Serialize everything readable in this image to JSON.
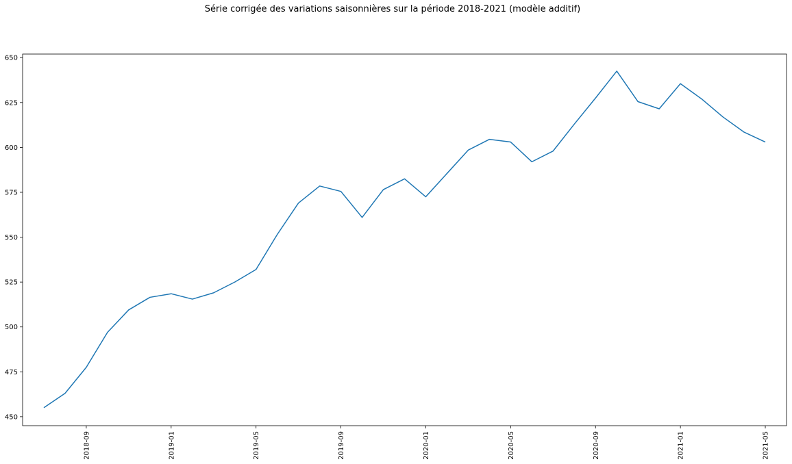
{
  "chart_data": {
    "type": "line",
    "title": "Série corrigée des variations saisonnières sur la période 2018-2021 (modèle additif)",
    "xlabel": "",
    "ylabel": "",
    "ylim": [
      445,
      652
    ],
    "xlim": [
      "2018-06-01",
      "2021-06-01"
    ],
    "grid": false,
    "legend": "none",
    "x_ticks": [
      "2018-09",
      "2019-01",
      "2019-05",
      "2019-09",
      "2020-01",
      "2020-05",
      "2020-09",
      "2021-01",
      "2021-05"
    ],
    "y_ticks": [
      450,
      475,
      500,
      525,
      550,
      575,
      600,
      625,
      650
    ],
    "series": [
      {
        "color": "#1f77b4",
        "x": [
          "2018-07",
          "2018-08",
          "2018-09",
          "2018-10",
          "2018-11",
          "2018-12",
          "2019-01",
          "2019-02",
          "2019-03",
          "2019-04",
          "2019-05",
          "2019-06",
          "2019-07",
          "2019-08",
          "2019-09",
          "2019-10",
          "2019-11",
          "2019-12",
          "2020-01",
          "2020-02",
          "2020-03",
          "2020-04",
          "2020-05",
          "2020-06",
          "2020-07",
          "2020-08",
          "2020-09",
          "2020-10",
          "2020-11",
          "2020-12",
          "2021-01",
          "2021-02",
          "2021-03",
          "2021-04",
          "2021-05"
        ],
        "values": [
          455,
          463,
          477.5,
          497,
          509.5,
          516.5,
          518.5,
          515.5,
          519,
          525,
          532,
          551.5,
          569,
          578.5,
          575.5,
          561,
          576.5,
          582.5,
          572.5,
          585.5,
          598.5,
          604.5,
          603,
          592,
          598,
          613,
          627.5,
          642.5,
          625.5,
          621.5,
          635.5,
          627,
          617,
          608.5,
          603
        ]
      }
    ]
  }
}
